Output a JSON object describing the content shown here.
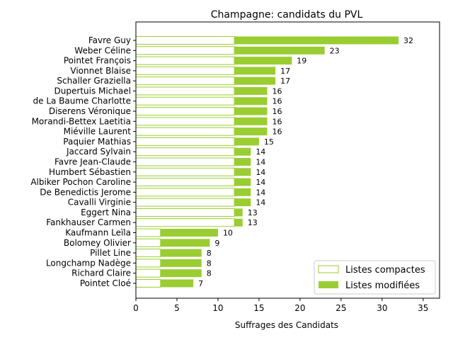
{
  "chart_data": {
    "type": "bar",
    "orientation": "horizontal",
    "stacked": true,
    "title": "Champagne: candidats du PVL",
    "xlabel": "Suffrages des Candidats",
    "ylabel": "",
    "xlim": [
      0,
      37
    ],
    "xticks": [
      0,
      5,
      10,
      15,
      20,
      25,
      30,
      35
    ],
    "grid": false,
    "legend_position": "bottom-right",
    "colors": {
      "compactes_edge": "#9acd32",
      "modifiees": "#9acd32"
    },
    "categories": [
      "Favre Guy",
      "Weber Céline",
      "Pointet François",
      "Vionnet Blaise",
      "Schaller Graziella",
      "Dupertuis Michael",
      "de La Baume Charlotte",
      "Diserens Véronique",
      "Morandi-Bettex Laetitia",
      "Miéville Laurent",
      "Paquier Mathias",
      "Jaccard Sylvain",
      "Favre Jean-Claude",
      "Humbert Sébastien",
      "Albiker Pochon Caroline",
      "De Benedictis Jerome",
      "Cavalli Virginie",
      "Eggert Nina",
      "Fankhauser Carmen",
      "Kaufmann Leïla",
      "Bolomey Olivier",
      "Pillet Line",
      "Longchamp Nadège",
      "Richard Claire",
      "Pointet Cloé"
    ],
    "series": [
      {
        "name": "Listes compactes",
        "values": [
          12,
          12,
          12,
          12,
          12,
          12,
          12,
          12,
          12,
          12,
          12,
          12,
          12,
          12,
          12,
          12,
          12,
          12,
          12,
          3,
          3,
          3,
          3,
          3,
          3
        ]
      },
      {
        "name": "Listes modifiées",
        "values": [
          20,
          11,
          7,
          5,
          5,
          4,
          4,
          4,
          4,
          4,
          3,
          2,
          2,
          2,
          2,
          2,
          2,
          1,
          1,
          7,
          6,
          5,
          5,
          5,
          4
        ]
      }
    ],
    "totals": [
      32,
      23,
      19,
      17,
      17,
      16,
      16,
      16,
      16,
      16,
      15,
      14,
      14,
      14,
      14,
      14,
      14,
      13,
      13,
      10,
      9,
      8,
      8,
      8,
      7
    ]
  }
}
